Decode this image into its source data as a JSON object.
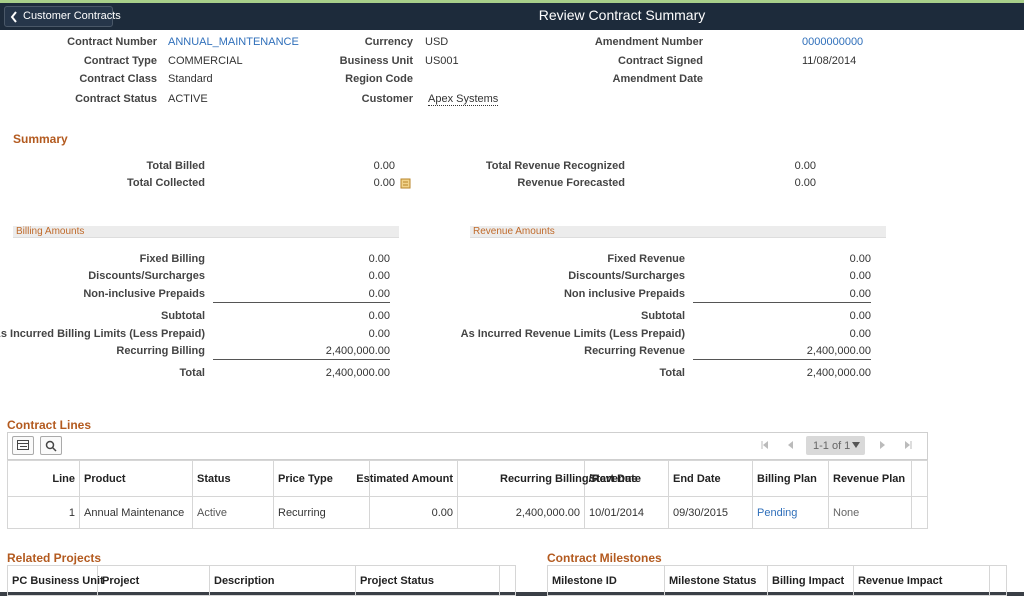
{
  "header": {
    "back_button": "Customer Contracts",
    "title": "Review Contract Summary"
  },
  "contract_fields": [
    [
      {
        "label": "Contract Number",
        "value": "ANNUAL_MAINTENANCE"
      },
      {
        "label": "Contract Type",
        "value": "COMMERCIAL"
      },
      {
        "label": "Contract Class",
        "value": "Standard"
      },
      {
        "label": "Contract Status",
        "value": "ACTIVE"
      }
    ],
    [
      {
        "label": "Currency",
        "value": "USD"
      },
      {
        "label": "Business Unit",
        "value": "US001"
      },
      {
        "label": "Region Code"
      },
      {
        "label": "Customer",
        "value": "Apex Systems"
      }
    ],
    [
      {
        "label": "Amendment Number",
        "value": "0000000000"
      },
      {
        "label": "Contract Signed",
        "value": "11/08/2014"
      },
      {
        "label": "Amendment Date"
      }
    ]
  ],
  "summary": {
    "title": "Summary",
    "left": [
      {
        "label": "Total Billed",
        "value": "0.00"
      },
      {
        "label": "Total Collected",
        "value": "0.00"
      }
    ],
    "right": [
      {
        "label": "Total Revenue Recognized",
        "value": "0.00"
      },
      {
        "label": "Revenue Forecasted",
        "value": "0.00"
      }
    ]
  },
  "billing_amounts": {
    "title": "Billing Amounts",
    "rows": [
      {
        "label": "Fixed Billing",
        "value": "0.00"
      },
      {
        "label": "Discounts/Surcharges",
        "value": "0.00"
      },
      {
        "label": "Non-inclusive Prepaids",
        "value": "0.00"
      },
      {
        "label": "Subtotal",
        "value": "0.00"
      },
      {
        "label": "As Incurred Billing Limits (Less Prepaid)",
        "value": "0.00"
      },
      {
        "label": "Recurring Billing",
        "value": "2,400,000.00"
      },
      {
        "label": "Total",
        "value": "2,400,000.00"
      }
    ]
  },
  "revenue_amounts": {
    "title": "Revenue Amounts",
    "rows": [
      {
        "label": "Fixed Revenue",
        "value": "0.00"
      },
      {
        "label": "Discounts/Surcharges",
        "value": "0.00"
      },
      {
        "label": "Non inclusive Prepaids",
        "value": "0.00"
      },
      {
        "label": "Subtotal",
        "value": "0.00"
      },
      {
        "label": "As Incurred Revenue Limits (Less Prepaid)",
        "value": "0.00"
      },
      {
        "label": "Recurring Revenue",
        "value": "2,400,000.00"
      },
      {
        "label": "Total",
        "value": "2,400,000.00"
      }
    ]
  },
  "contract_lines": {
    "title": "Contract Lines",
    "pagination": "1-1 of 1",
    "columns": [
      "Line",
      "Product",
      "Status",
      "Price Type",
      "Estimated Amount",
      "Recurring Billing/Revenue",
      "Start Date",
      "End Date",
      "Billing Plan",
      "Revenue Plan"
    ],
    "rows": [
      [
        "1",
        "Annual Maintenance",
        "Active",
        "Recurring",
        "0.00",
        "2,400,000.00",
        "10/01/2014",
        "09/30/2015",
        "Pending",
        "None"
      ]
    ]
  },
  "related_projects": {
    "title": "Related Projects",
    "columns": [
      "PC Business Unit",
      "Project",
      "Description",
      "Project Status"
    ]
  },
  "contract_milestones": {
    "title": "Contract Milestones",
    "columns": [
      "Milestone ID",
      "Milestone Status",
      "Billing Impact",
      "Revenue Impact"
    ]
  }
}
